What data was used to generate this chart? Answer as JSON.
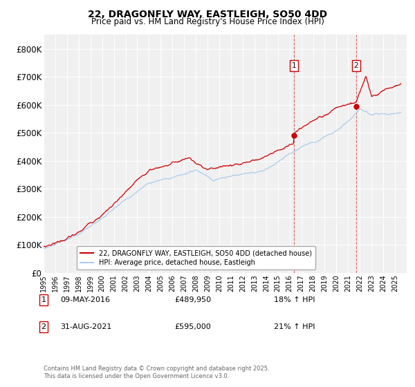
{
  "title_line1": "22, DRAGONFLY WAY, EASTLEIGH, SO50 4DD",
  "title_line2": "Price paid vs. HM Land Registry's House Price Index (HPI)",
  "ylim": [
    0,
    850000
  ],
  "yticks": [
    0,
    100000,
    200000,
    300000,
    400000,
    500000,
    600000,
    700000,
    800000
  ],
  "ytick_labels": [
    "£0",
    "£100K",
    "£200K",
    "£300K",
    "£400K",
    "£500K",
    "£600K",
    "£700K",
    "£800K"
  ],
  "xlim_start": 1995,
  "xlim_end": 2026,
  "red_line_color": "#cc0000",
  "blue_line_color": "#aaccee",
  "marker1_x": 2016.36,
  "marker1_y": 489950,
  "marker2_x": 2021.67,
  "marker2_y": 595000,
  "vline1_x": 2016.36,
  "vline2_x": 2021.67,
  "legend_line1": "22, DRAGONFLY WAY, EASTLEIGH, SO50 4DD (detached house)",
  "legend_line2": "HPI: Average price, detached house, Eastleigh",
  "note1_num": "1",
  "note1_date": "09-MAY-2016",
  "note1_price": "£489,950",
  "note1_hpi": "18% ↑ HPI",
  "note2_num": "2",
  "note2_date": "31-AUG-2021",
  "note2_price": "£595,000",
  "note2_hpi": "21% ↑ HPI",
  "footnote": "Contains HM Land Registry data © Crown copyright and database right 2025.\nThis data is licensed under the Open Government Licence v3.0.",
  "background_color": "#ffffff",
  "plot_bg_color": "#f0f0f0"
}
